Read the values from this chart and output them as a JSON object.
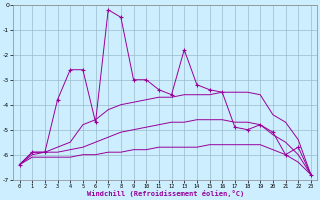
{
  "xlabel": "Windchill (Refroidissement éolien,°C)",
  "background_color": "#cceeff",
  "grid_color": "#99bbcc",
  "line_color": "#990099",
  "x_values": [
    0,
    1,
    2,
    3,
    4,
    5,
    6,
    7,
    8,
    9,
    10,
    11,
    12,
    13,
    14,
    15,
    16,
    17,
    18,
    19,
    20,
    21,
    22,
    23
  ],
  "series1": [
    -6.4,
    -5.9,
    -5.9,
    -3.8,
    -2.6,
    -2.6,
    -4.7,
    -0.2,
    -0.5,
    -3.0,
    -3.0,
    -3.4,
    -3.6,
    -1.8,
    -3.2,
    -3.4,
    -3.5,
    -4.9,
    -5.0,
    -4.8,
    -5.1,
    -6.0,
    -5.7,
    -6.8
  ],
  "series2": [
    -6.4,
    -5.9,
    -5.9,
    -5.7,
    -5.5,
    -4.8,
    -4.6,
    -4.2,
    -4.0,
    -3.9,
    -3.8,
    -3.7,
    -3.7,
    -3.6,
    -3.6,
    -3.6,
    -3.5,
    -3.5,
    -3.5,
    -3.6,
    -4.4,
    -4.7,
    -5.4,
    -6.8
  ],
  "series3": [
    -6.4,
    -6.0,
    -5.9,
    -5.9,
    -5.8,
    -5.7,
    -5.5,
    -5.3,
    -5.1,
    -5.0,
    -4.9,
    -4.8,
    -4.7,
    -4.7,
    -4.6,
    -4.6,
    -4.6,
    -4.7,
    -4.7,
    -4.8,
    -5.2,
    -5.5,
    -6.0,
    -6.8
  ],
  "series4": [
    -6.4,
    -6.1,
    -6.1,
    -6.1,
    -6.1,
    -6.0,
    -6.0,
    -5.9,
    -5.9,
    -5.8,
    -5.8,
    -5.7,
    -5.7,
    -5.7,
    -5.7,
    -5.6,
    -5.6,
    -5.6,
    -5.6,
    -5.6,
    -5.8,
    -6.0,
    -6.3,
    -6.8
  ],
  "ylim": [
    -7,
    0
  ],
  "xlim": [
    -0.5,
    23.5
  ],
  "yticks": [
    0,
    -1,
    -2,
    -3,
    -4,
    -5,
    -6,
    -7
  ]
}
